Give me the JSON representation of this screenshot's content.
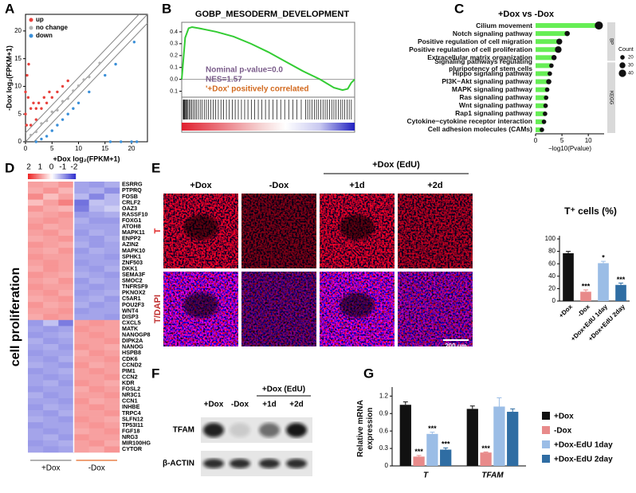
{
  "panel_labels": [
    "A",
    "B",
    "C",
    "D",
    "E",
    "F",
    "G"
  ],
  "chart_data": [
    {
      "type": "scatter",
      "xlabel": "+Dox  log₂(FPKM+1)",
      "ylabel": "-Dox  log₂(FPKM+1)",
      "xlim": [
        0,
        23
      ],
      "ylim": [
        0,
        23
      ],
      "xticks": [
        0,
        5,
        10,
        15,
        20
      ],
      "yticks": [
        0,
        5,
        10,
        15,
        20
      ],
      "series": [
        {
          "name": "up",
          "color": "#e8413c",
          "x": [
            0,
            0,
            0.3,
            0.5,
            1,
            1.5,
            2,
            2.5,
            3,
            3.5,
            4,
            5,
            6,
            7,
            8,
            0.2,
            1,
            2,
            0.6,
            4.5
          ],
          "values": [
            5,
            9,
            12,
            8,
            6,
            7,
            6,
            7,
            6,
            8,
            7,
            8,
            9,
            10,
            11,
            3,
            3,
            4,
            14,
            9
          ]
        },
        {
          "name": "no change",
          "color": "#b0b0b0",
          "x": [
            1,
            2,
            3,
            4,
            5,
            6,
            7,
            8,
            9,
            10,
            11,
            12,
            14
          ],
          "values": [
            1.2,
            1.8,
            3.3,
            3.8,
            5.4,
            5.7,
            7.3,
            7.8,
            9.2,
            10.1,
            11.2,
            11.7,
            14.2
          ]
        },
        {
          "name": "down",
          "color": "#3a8fd8",
          "x": [
            2,
            3,
            4,
            5,
            6,
            7,
            8,
            9,
            10,
            12,
            15,
            16,
            18,
            20,
            21,
            17,
            20.5
          ],
          "values": [
            0,
            0.5,
            1,
            2,
            3,
            4,
            5,
            6,
            7,
            9,
            12,
            0,
            0,
            0,
            0,
            14,
            18
          ]
        }
      ]
    },
    {
      "type": "line",
      "title": "GOBP_MESODERM_DEVELOPMENT",
      "color": "#33cc33",
      "xlim": [
        0,
        100
      ],
      "ylim": [
        -0.15,
        0.48
      ],
      "yticks": [
        0.4,
        0.3,
        0.2,
        0.1,
        {
          "value": 0,
          "label": "0.0"
        },
        {
          "value": -0.1,
          "label": "0.1"
        }
      ],
      "x": [
        0,
        2,
        4,
        6,
        10,
        20,
        30,
        40,
        50,
        60,
        70,
        80,
        88,
        93,
        96,
        98,
        100
      ],
      "values": [
        0,
        0.35,
        0.43,
        0.44,
        0.43,
        0.4,
        0.36,
        0.3,
        0.23,
        0.15,
        0.07,
        0,
        -0.07,
        -0.09,
        -0.08,
        -0.03,
        0
      ],
      "annotations": [
        "Nominal p-value=0.0",
        "NES=1.57",
        "'+Dox' positively correlated"
      ]
    },
    {
      "type": "lollipop",
      "title": "+Dox vs -Dox",
      "xlabel": "−log10(Pvalue)",
      "color": "#66ee55",
      "xlim": [
        0,
        13
      ],
      "xticks": [
        0,
        5,
        10
      ],
      "categories": [
        "Cilium movement",
        "Notch signaling pathway",
        "Positive regulation of cell migration",
        "Positive regulation of cell proliferation",
        "Extracellular matrix organization",
        "Signaling pathways regulating pluripotency of stem cells",
        "Hippo signaling pathway",
        "PI3K−Akt signaling pathway",
        "MAPK signaling pathway",
        "Ras signaling pathway",
        "Wnt signaling pathway",
        "Rap1 signaling pathway",
        "Cytokine−cytokine receptor interaction",
        "Cell adhesion molecules (CAMs)"
      ],
      "values": [
        12,
        6,
        4.5,
        4.3,
        3.5,
        3,
        2.7,
        2.5,
        2.2,
        2,
        1.9,
        1.8,
        1.6,
        1.2
      ],
      "count": [
        45,
        25,
        30,
        35,
        25,
        20,
        20,
        25,
        20,
        20,
        20,
        20,
        20,
        20
      ],
      "group": [
        "BP",
        "BP",
        "BP",
        "BP",
        "BP",
        "KEGG",
        "KEGG",
        "KEGG",
        "KEGG",
        "KEGG",
        "KEGG",
        "KEGG",
        "KEGG",
        "KEGG"
      ],
      "size_legend": {
        "title": "Count",
        "values": [
          20,
          30,
          40
        ]
      }
    },
    {
      "type": "heatmap",
      "ylabel": "cell proliferation",
      "zlim": [
        -2,
        2
      ],
      "zticks": [
        2,
        1,
        0,
        -1,
        -2
      ],
      "colors": {
        "low": "#3535d0",
        "mid": "#ffffff",
        "high": "#ee2b2b"
      },
      "column_groups": [
        {
          "label": "+Dox",
          "color": "#999999"
        },
        {
          "label": "-Dox",
          "color": "#e8824a"
        }
      ],
      "rows": [
        "ESRRG",
        "PTPRQ",
        "FOSB",
        "CRLF2",
        "OAZ3",
        "RASSF10",
        "FOXG1",
        "ATOH8",
        "MAPK11",
        "ENPP2",
        "AZIN2",
        "MAPK10",
        "SPHK1",
        "ZNF503",
        "DKK1",
        "SEMA3F",
        "SMOC2",
        "TNFRSF9",
        "PKNOX2",
        "C5AR1",
        "POU2F3",
        "WNT4",
        "DISP3",
        "CXCL5",
        "MATK",
        "NANOGP8",
        "DIPK2A",
        "NANOG",
        "HSPB8",
        "CDK6",
        "CCND2",
        "PIM1",
        "CCN2",
        "KDR",
        "FOSL2",
        "NR3C1",
        "CCN1",
        "INHBE",
        "TRPC4",
        "SLFN12",
        "TP53I11",
        "FGF18",
        "NRG3",
        "MIR100HG",
        "CYTOR"
      ],
      "values": [
        [
          0.9,
          0.8,
          1.0,
          -0.9,
          -1.0,
          -0.8
        ],
        [
          0.8,
          1.0,
          0.7,
          -0.9,
          -0.8,
          -1.1
        ],
        [
          1.1,
          0.6,
          0.9,
          -0.7,
          -1.2,
          -0.7
        ],
        [
          0.6,
          0.9,
          1.2,
          -1.4,
          -0.6,
          -0.7
        ],
        [
          1.0,
          0.8,
          0.7,
          -1.3,
          -0.7,
          -0.5
        ],
        [
          0.8,
          0.9,
          1.0,
          -1.0,
          -0.9,
          -0.8
        ],
        [
          0.9,
          1.0,
          0.9,
          -0.8,
          -1.0,
          -1.0
        ],
        [
          1.0,
          0.8,
          0.9,
          -0.9,
          -0.9,
          -0.9
        ],
        [
          0.9,
          1.0,
          0.8,
          -1.0,
          -0.8,
          -0.9
        ],
        [
          0.8,
          0.9,
          1.0,
          -0.9,
          -1.0,
          -0.8
        ],
        [
          1.0,
          0.9,
          0.8,
          -0.8,
          -1.0,
          -0.9
        ],
        [
          0.9,
          0.8,
          1.0,
          -1.0,
          -0.8,
          -0.9
        ],
        [
          1.0,
          0.9,
          0.9,
          -0.9,
          -0.9,
          -1.0
        ],
        [
          0.9,
          1.0,
          0.9,
          -1.0,
          -0.9,
          -0.9
        ],
        [
          0.8,
          1.0,
          0.9,
          -0.9,
          -1.0,
          -0.8
        ],
        [
          1.0,
          0.9,
          0.8,
          -0.8,
          -0.9,
          -1.0
        ],
        [
          0.9,
          0.8,
          1.0,
          -1.0,
          -0.8,
          -0.9
        ],
        [
          1.0,
          0.9,
          0.9,
          -0.9,
          -1.0,
          -0.9
        ],
        [
          0.9,
          1.0,
          0.8,
          -1.0,
          -0.9,
          -0.8
        ],
        [
          0.8,
          0.9,
          1.0,
          -0.9,
          -0.8,
          -1.0
        ],
        [
          1.0,
          0.8,
          0.9,
          -0.8,
          -1.0,
          -0.9
        ],
        [
          0.9,
          0.9,
          1.0,
          -1.0,
          -0.9,
          -0.9
        ],
        [
          0.8,
          1.0,
          0.9,
          -0.9,
          -0.9,
          -1.0
        ],
        [
          -1.0,
          -0.6,
          -1.3,
          0.9,
          1.0,
          0.9
        ],
        [
          -0.9,
          -1.0,
          -0.9,
          1.0,
          0.9,
          0.9
        ],
        [
          -1.0,
          -0.9,
          -0.8,
          0.9,
          1.0,
          0.9
        ],
        [
          -0.8,
          -1.0,
          -0.9,
          0.9,
          0.9,
          1.0
        ],
        [
          -0.9,
          -0.8,
          -1.0,
          1.0,
          0.9,
          0.8
        ],
        [
          -1.0,
          -0.9,
          -0.9,
          0.8,
          1.0,
          0.9
        ],
        [
          -0.9,
          -1.0,
          -0.8,
          0.9,
          0.9,
          1.0
        ],
        [
          -0.8,
          -0.9,
          -1.0,
          1.0,
          0.8,
          0.9
        ],
        [
          -1.0,
          -0.9,
          -0.8,
          0.9,
          1.0,
          0.9
        ],
        [
          -0.9,
          -1.0,
          -0.9,
          0.9,
          0.9,
          1.0
        ],
        [
          -0.9,
          -0.8,
          -1.0,
          1.0,
          0.9,
          0.8
        ],
        [
          -1.0,
          -0.9,
          -0.9,
          0.8,
          1.0,
          0.9
        ],
        [
          -0.8,
          -1.0,
          -0.9,
          0.9,
          0.9,
          1.0
        ],
        [
          -0.9,
          -0.9,
          -1.0,
          1.0,
          0.8,
          0.9
        ],
        [
          -1.0,
          -0.8,
          -0.9,
          0.9,
          1.0,
          0.9
        ],
        [
          -0.9,
          -1.0,
          -0.8,
          0.9,
          0.9,
          1.0
        ],
        [
          -0.8,
          -0.9,
          -1.0,
          1.0,
          0.9,
          0.8
        ],
        [
          -1.0,
          -0.9,
          -0.9,
          0.9,
          1.0,
          0.9
        ],
        [
          -0.9,
          -1.0,
          -0.9,
          0.8,
          0.9,
          1.0
        ],
        [
          -0.9,
          -0.8,
          -1.0,
          1.0,
          0.9,
          0.9
        ],
        [
          -1.0,
          -0.9,
          -0.8,
          0.9,
          1.0,
          0.8
        ],
        [
          -0.9,
          -1.0,
          -0.9,
          0.9,
          0.8,
          1.0
        ]
      ]
    },
    {
      "type": "bar",
      "title": "T⁺ cells (%)",
      "ylim": [
        0,
        100
      ],
      "yticks": [
        0,
        20,
        40,
        60,
        80,
        100
      ],
      "categories": [
        "+Dox",
        "-Dox",
        "+Dox+EdU 1day",
        "+Dox+EdU 2day"
      ],
      "values": [
        77,
        15,
        61,
        26
      ],
      "errors": [
        3,
        3,
        3,
        3
      ],
      "annotations": [
        null,
        "***",
        "*",
        "***"
      ],
      "colors": [
        "#111111",
        "#e88a8a",
        "#9bbde6",
        "#2f6da3"
      ]
    },
    {
      "type": "bar",
      "ylabel": "Relative mRNA expression",
      "ylim": [
        0,
        1.3
      ],
      "yticks": [
        0,
        0.3,
        0.6,
        0.9,
        1.2
      ],
      "categories": [
        "T",
        "TFAM"
      ],
      "series": [
        {
          "name": "+Dox",
          "color": "#111111",
          "values": [
            1.05,
            0.98
          ],
          "errors": [
            0.05,
            0.05
          ],
          "annotations": [
            null,
            null
          ]
        },
        {
          "name": "-Dox",
          "color": "#e88a8a",
          "values": [
            0.16,
            0.23
          ],
          "errors": [
            0.02,
            0.01
          ],
          "annotations": [
            "***",
            "***"
          ]
        },
        {
          "name": "+Dox-EdU 1day",
          "color": "#9bbde6",
          "values": [
            0.55,
            1.02
          ],
          "errors": [
            0.03,
            0.15
          ],
          "annotations": [
            "***",
            null
          ]
        },
        {
          "name": "+Dox-EdU 2day",
          "color": "#2f6da3",
          "values": [
            0.28,
            0.93
          ],
          "errors": [
            0.03,
            0.05
          ],
          "annotations": [
            "***",
            null
          ]
        }
      ]
    }
  ],
  "panel_e_images": {
    "column_labels": [
      "+Dox",
      "-Dox",
      "+1d",
      "+2d"
    ],
    "group_label": "+Dox (EdU)",
    "row_labels": [
      "T",
      "T/DAPI"
    ],
    "scale_bar": "200 μm"
  },
  "panel_f_blot": {
    "lane_labels": [
      "+Dox",
      "-Dox",
      "+1d",
      "+2d"
    ],
    "group_label": "+Dox (EdU)",
    "row_labels": [
      "TFAM",
      "β-ACTIN"
    ]
  }
}
